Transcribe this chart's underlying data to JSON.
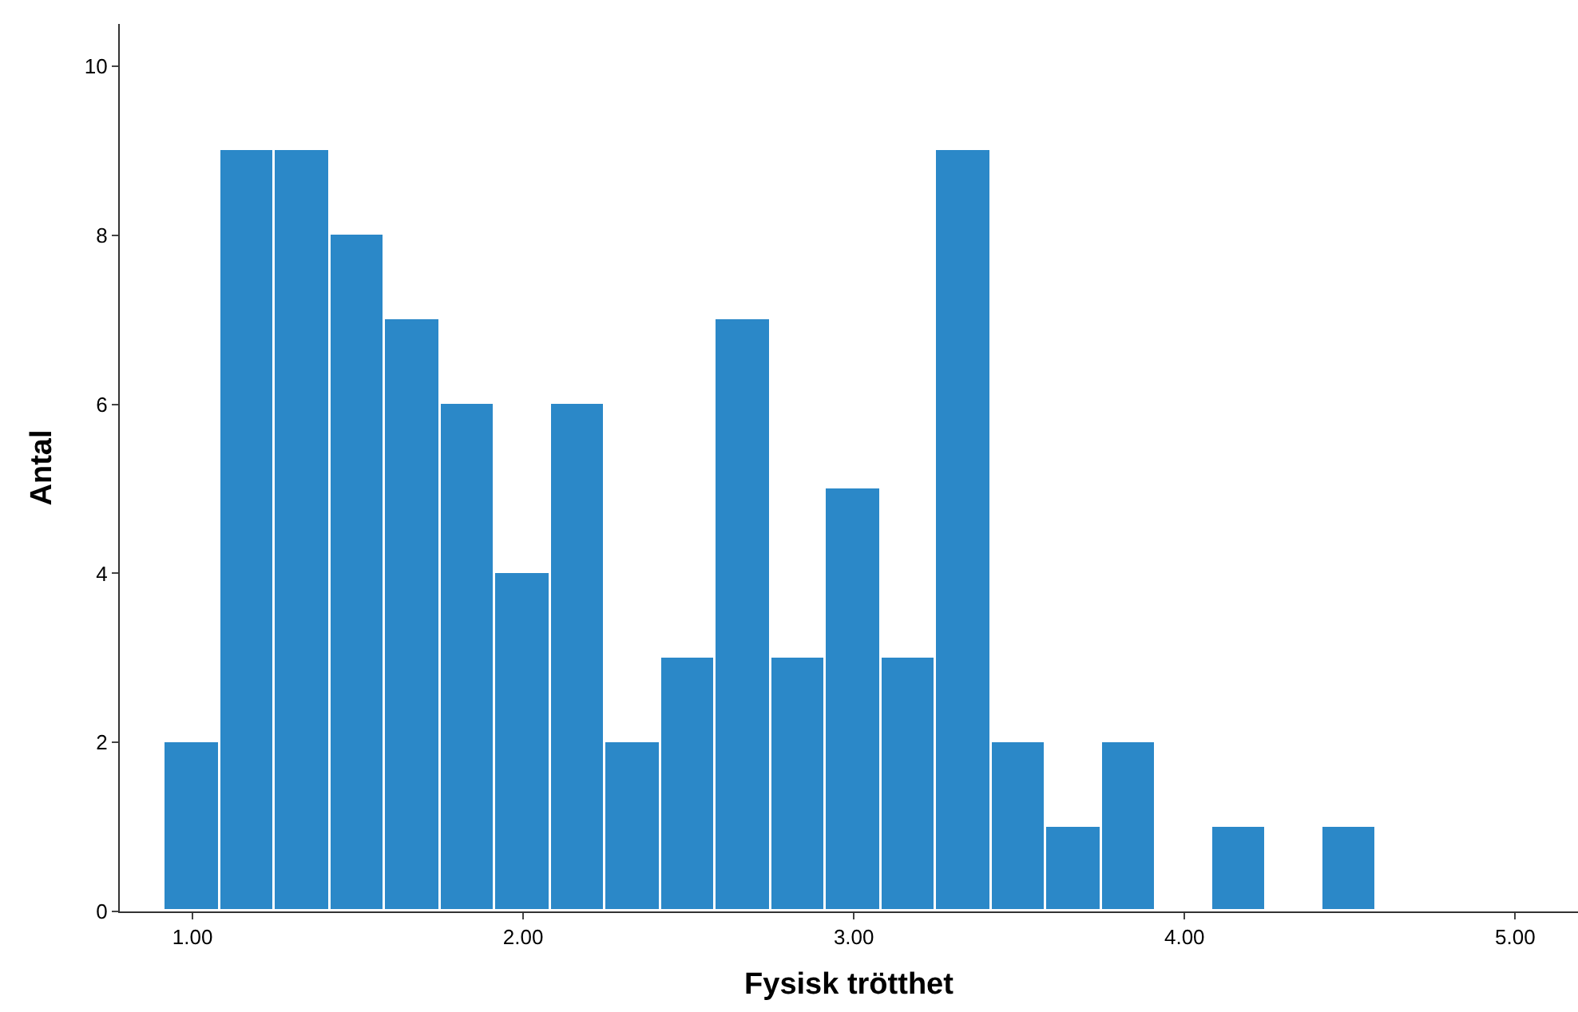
{
  "chart_data": {
    "type": "histogram",
    "xlabel": "Fysisk trötthet",
    "ylabel": "Antal",
    "bins": [
      0.9167,
      1.0833,
      1.25,
      1.4167,
      1.5833,
      1.75,
      1.9167,
      2.0833,
      2.25,
      2.4167,
      2.5833,
      2.75,
      2.9167,
      3.0833,
      3.25,
      3.4167,
      3.5833,
      3.75,
      3.9167,
      4.0833,
      4.25,
      4.4167,
      4.5833
    ],
    "values": [
      2,
      9,
      9,
      8,
      7,
      6,
      4,
      6,
      2,
      3,
      7,
      3,
      5,
      3,
      9,
      2,
      1,
      2,
      0,
      1,
      0,
      1
    ],
    "color": "#2b88c8",
    "xlim": [
      0.78,
      5.19
    ],
    "xticks": [
      {
        "value": 1,
        "label": "1.00"
      },
      {
        "value": 2,
        "label": "2.00"
      },
      {
        "value": 3,
        "label": "3.00"
      },
      {
        "value": 4,
        "label": "4.00"
      },
      {
        "value": 5,
        "label": "5.00"
      }
    ],
    "ylim": [
      0,
      10.5
    ],
    "yticks": [
      0,
      2,
      4,
      6,
      8,
      10
    ]
  }
}
